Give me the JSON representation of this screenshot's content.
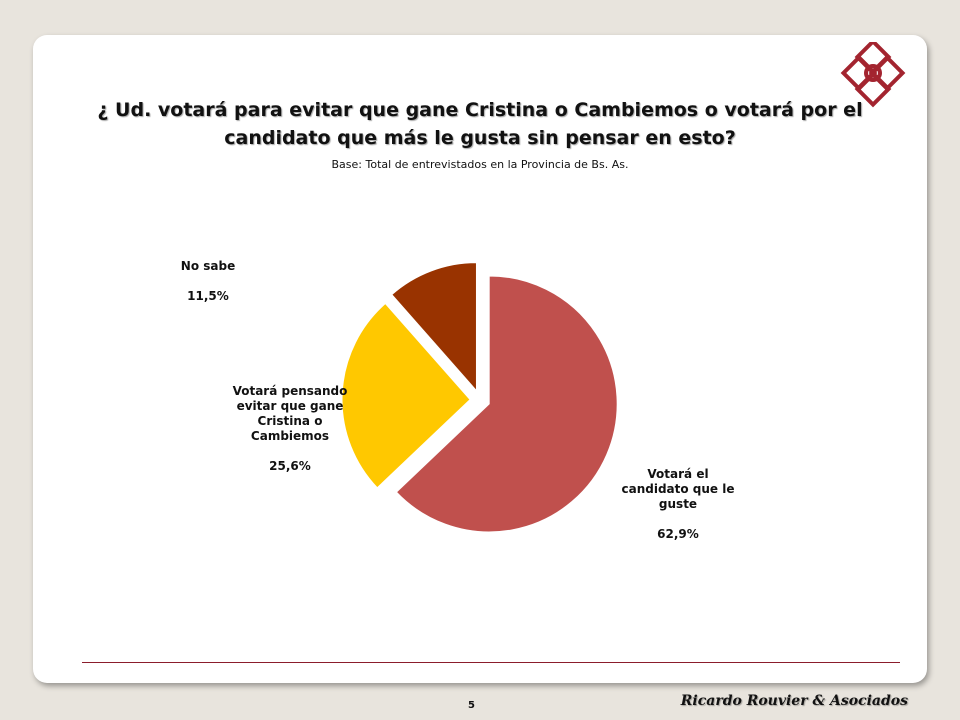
{
  "slide": {
    "title": "¿ Ud. votará para evitar que gane Cristina o Cambiemos o votará por el candidato que más le gusta sin pensar en esto?",
    "subtitle": "Base: Total de entrevistados en la Provincia de Bs. As.",
    "page_number": "5",
    "brand": "Ricardo Rouvier & Asociados"
  },
  "chart_data": {
    "type": "pie",
    "title": "¿ Ud. votará para evitar que gane Cristina o Cambiemos o votará por el candidato que más le gusta sin pensar en esto?",
    "subtitle": "Base: Total de entrevistados en la Provincia de Bs. As.",
    "slices": [
      {
        "name": "Votará el candidato que le guste",
        "value": 62.9,
        "label": "62,9%",
        "color": "#c0504d"
      },
      {
        "name": "Votará pensando evitar que gane Cristina o Cambiemos",
        "value": 25.6,
        "label": "25,6%",
        "color": "#ffc800"
      },
      {
        "name": "No sabe",
        "value": 11.5,
        "label": "11,5%",
        "color": "#993300"
      }
    ],
    "legend": "none",
    "exploded": true
  }
}
